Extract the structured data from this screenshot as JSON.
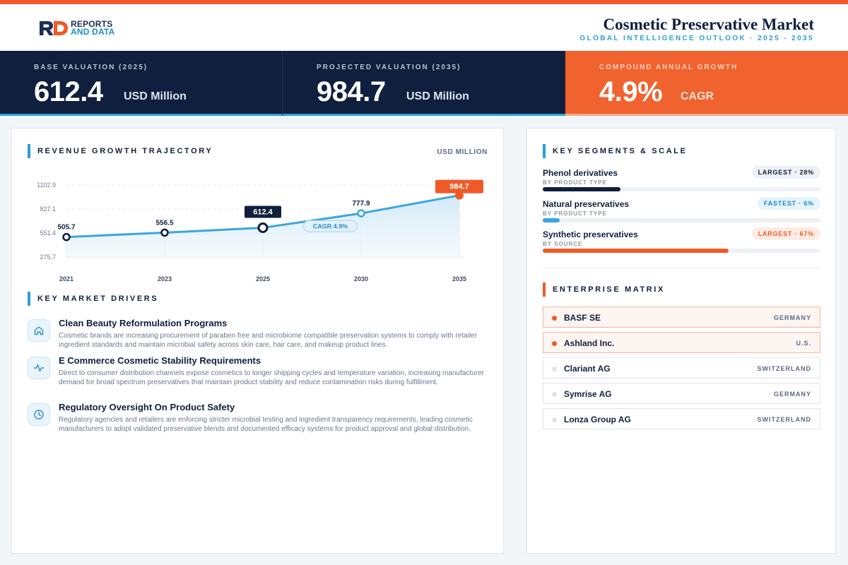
{
  "brand": {
    "line1": "REPORTS",
    "line2": "AND DATA"
  },
  "header": {
    "title": "Cosmetic Preservative Market",
    "subtitle": "GLOBAL INTELLIGENCE OUTLOOK  ·  2025 - 2035"
  },
  "kpis": [
    {
      "label": "BASE VALUATION (2025)",
      "value": "612.4",
      "unit": "USD Million"
    },
    {
      "label": "PROJECTED VALUATION (2035)",
      "value": "984.7",
      "unit": "USD Million"
    },
    {
      "label": "COMPOUND ANNUAL GROWTH",
      "value": "4.9%",
      "unit": "CAGR"
    }
  ],
  "revenue": {
    "section_title": "REVENUE GROWTH TRAJECTORY",
    "unit_label": "USD MILLION",
    "cagr_label": "CAGR 4.9%"
  },
  "chart_data": {
    "type": "area",
    "x": [
      "2021",
      "2023",
      "2025",
      "2030",
      "2035"
    ],
    "values": [
      505.7,
      556.5,
      612.4,
      777.9,
      984.7
    ],
    "value_labels": [
      "505.7",
      "556.5",
      "612.4",
      "777.9",
      "984.7"
    ],
    "yticks": [
      1102.9,
      827.1,
      551.4,
      275.7
    ],
    "ytick_labels": [
      "1102.9",
      "827.1",
      "551.4",
      "275.7"
    ],
    "ylim": [
      275.7,
      1102.9
    ],
    "highlight_base_index": 2,
    "highlight_end_index": 4,
    "grid": true,
    "colors": {
      "line": "#3aa6dc",
      "base": "#0f1f3d",
      "end": "#f05a28"
    }
  },
  "drivers": {
    "section_title": "KEY MARKET DRIVERS",
    "items": [
      {
        "icon": "home-icon",
        "title": "Clean Beauty Reformulation Programs",
        "body": "Cosmetic brands are increasing procurement of paraben free and microbiome compatible preservation systems to comply with retailer ingredient standards and maintain microbial safety across skin care, hair care, and makeup product lines."
      },
      {
        "icon": "activity-icon",
        "title": "E Commerce Cosmetic Stability Requirements",
        "body": "Direct to consumer distribution channels expose cosmetics to longer shipping cycles and temperature variation, increasing manufacturer demand for broad spectrum preservatives that maintain product stability and reduce contamination risks during fulfillment."
      },
      {
        "icon": "clock-icon",
        "title": "Regulatory Oversight On Product Safety",
        "body": "Regulatory agencies and retailers are enforcing stricter microbial testing and ingredient transparency requirements, leading cosmetic manufacturers to adopt validated preservative blends and documented efficacy systems for product approval and global distribution."
      }
    ]
  },
  "segments": {
    "section_title": "KEY SEGMENTS & SCALE",
    "items": [
      {
        "name": "Phenol derivatives",
        "category": "BY PRODUCT TYPE",
        "badge": "LARGEST · 28%",
        "share": 0.28,
        "color": "#0f1f3d"
      },
      {
        "name": "Natural preservatives",
        "category": "BY PRODUCT TYPE",
        "badge": "FASTEST · 6%",
        "share": 0.06,
        "color": "#3aa6dc"
      },
      {
        "name": "Synthetic preservatives",
        "category": "BY SOURCE",
        "badge": "LARGEST · 67%",
        "share": 0.67,
        "color": "#f05a28"
      }
    ]
  },
  "enterprise": {
    "section_title": "ENTERPRISE MATRIX",
    "items": [
      {
        "name": "BASF SE",
        "country": "GERMANY"
      },
      {
        "name": "Ashland Inc.",
        "country": "U.S."
      },
      {
        "name": "Clariant AG",
        "country": "SWITZERLAND"
      },
      {
        "name": "Symrise AG",
        "country": "GERMANY"
      },
      {
        "name": "Lonza Group AG",
        "country": "SWITZERLAND"
      }
    ]
  }
}
